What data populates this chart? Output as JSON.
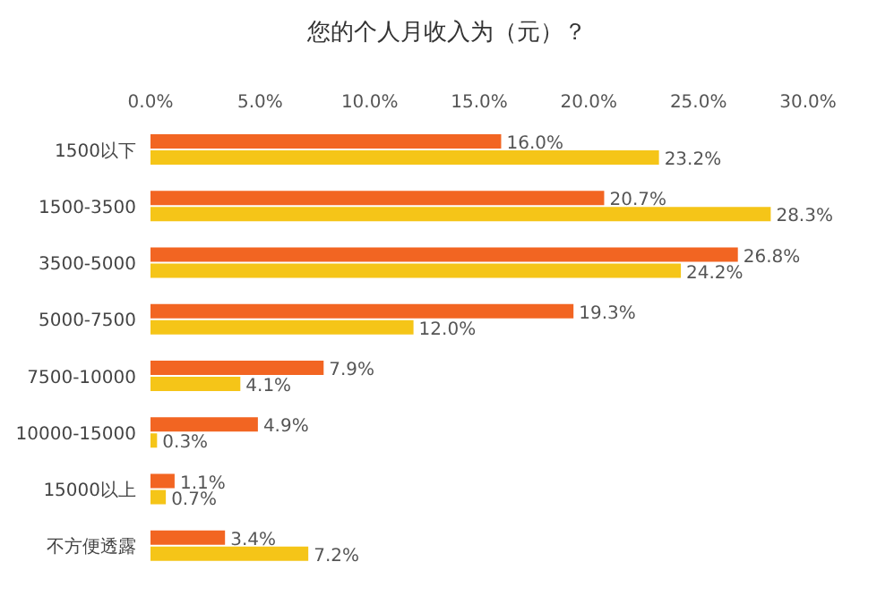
{
  "chart_data": {
    "type": "bar",
    "orientation": "horizontal",
    "title": "您的个人月收入为（元）？",
    "categories": [
      "1500以下",
      "1500-3500",
      "3500-5000",
      "5000-7500",
      "7500-10000",
      "10000-15000",
      "15000以上",
      "不方便透露"
    ],
    "series": [
      {
        "color": "#f26522",
        "values": [
          16.0,
          20.7,
          26.8,
          19.3,
          7.9,
          4.9,
          1.1,
          3.4
        ],
        "value_labels": [
          "16.0%",
          "20.7%",
          "26.8%",
          "19.3%",
          "7.9%",
          "4.9%",
          "1.1%",
          "3.4%"
        ]
      },
      {
        "color": "#f5c518",
        "values": [
          23.2,
          28.3,
          24.2,
          12.0,
          4.1,
          0.3,
          0.7,
          7.2
        ],
        "value_labels": [
          "23.2%",
          "28.3%",
          "24.2%",
          "12.0%",
          "4.1%",
          "0.3%",
          "0.7%",
          "7.2%"
        ]
      }
    ],
    "xlim": [
      0,
      30
    ],
    "xticks": [
      {
        "value": 0,
        "label": "0.0%"
      },
      {
        "value": 5,
        "label": "5.0%"
      },
      {
        "value": 10,
        "label": "10.0%"
      },
      {
        "value": 15,
        "label": "15.0%"
      },
      {
        "value": 20,
        "label": "20.0%"
      },
      {
        "value": 25,
        "label": "25.0%"
      },
      {
        "value": 30,
        "label": "30.0%"
      }
    ],
    "grid": false,
    "legend": false
  }
}
